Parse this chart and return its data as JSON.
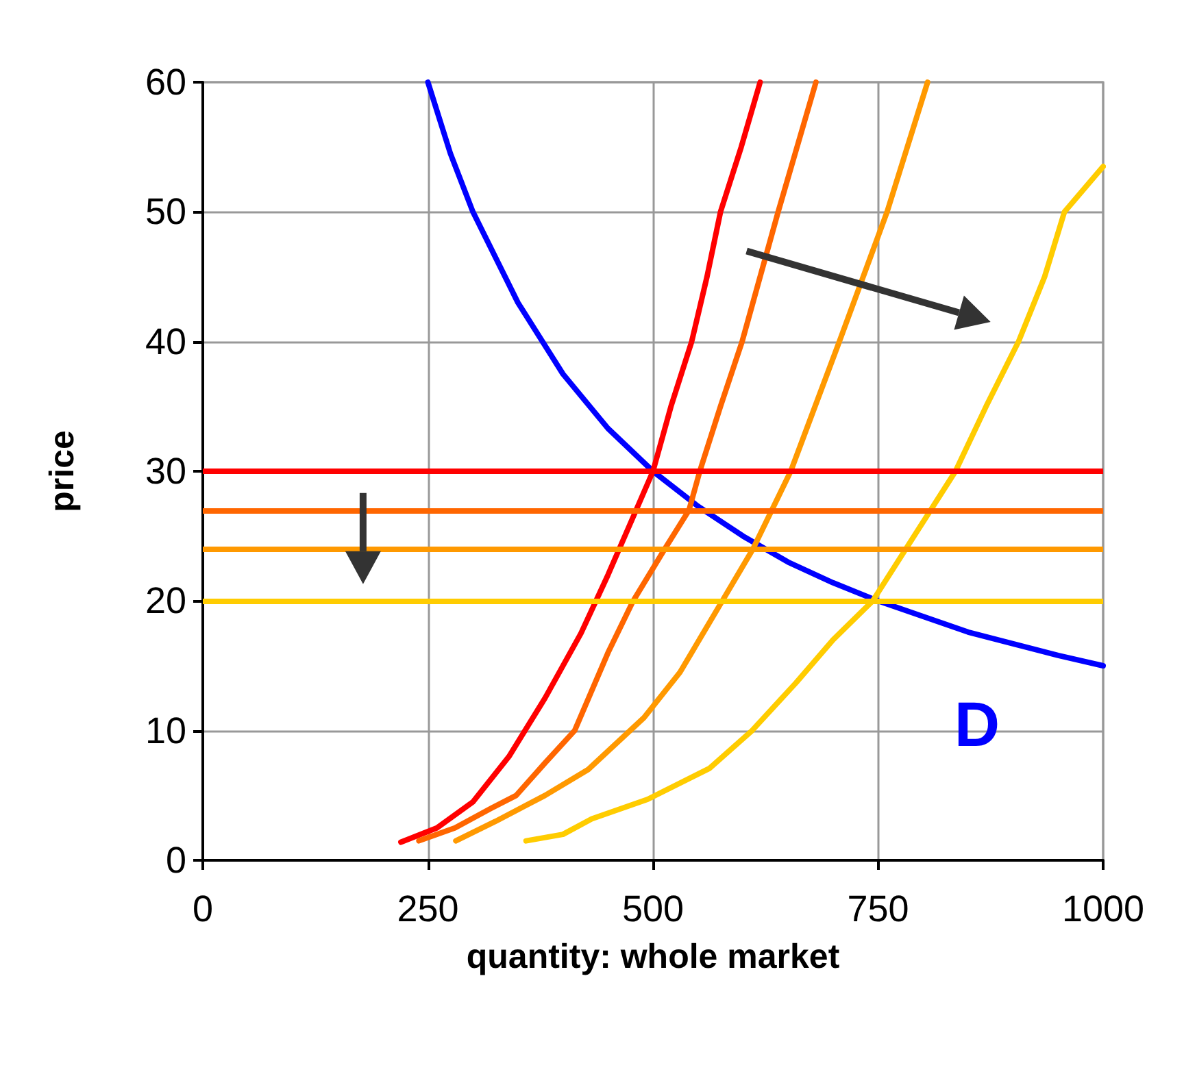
{
  "chart_data": {
    "type": "line",
    "xlabel": "quantity: whole market",
    "ylabel": "price",
    "xlim": [
      0,
      1000
    ],
    "xticks": [
      0,
      250,
      500,
      750,
      1000
    ],
    "ylim": [
      0,
      60
    ],
    "yticks": [
      0,
      10,
      20,
      30,
      40,
      50,
      60
    ],
    "grid": true,
    "line_style": "solid",
    "series": [
      {
        "color": "#0000ff",
        "x": [
          250,
          275,
          300,
          350,
          400,
          450,
          500,
          550,
          600,
          650,
          700,
          750,
          800,
          850,
          900,
          950,
          1000
        ],
        "values": [
          60,
          54.5,
          50,
          43,
          37.5,
          33.3,
          30,
          27.3,
          25,
          23,
          21.4,
          20,
          18.8,
          17.6,
          16.7,
          15.8,
          15
        ]
      },
      {
        "color": "#ff0000",
        "x": [
          220,
          260,
          300,
          340,
          380,
          420,
          450,
          475,
          500,
          520,
          543,
          560,
          575,
          598,
          619
        ],
        "values": [
          1.4,
          2.5,
          4.5,
          8,
          12.5,
          17.5,
          22,
          26,
          30,
          35,
          40,
          45,
          50,
          55,
          60
        ]
      },
      {
        "color": "#ff6600",
        "x": [
          240,
          280,
          320,
          348,
          380,
          413,
          450,
          478,
          513,
          540,
          552,
          575,
          599,
          639,
          681
        ],
        "values": [
          1.5,
          2.5,
          4,
          5,
          7.5,
          10,
          16,
          20,
          24,
          27,
          30,
          35,
          40,
          50,
          60
        ]
      },
      {
        "color": "#ff9900",
        "x": [
          281,
          325,
          380,
          428,
          490,
          530,
          577,
          611,
          653,
          707,
          760,
          805
        ],
        "values": [
          1.5,
          3,
          5,
          7,
          11,
          14.5,
          20,
          24,
          30,
          40,
          50,
          60
        ]
      },
      {
        "color": "#ffcc00",
        "x": [
          359,
          400,
          432,
          494,
          563,
          610,
          659,
          700,
          744,
          790,
          836,
          870,
          906,
          935,
          957,
          1000
        ],
        "values": [
          1.5,
          2,
          3.2,
          4.7,
          7.1,
          10,
          13.7,
          17,
          20,
          25,
          30,
          35,
          40,
          45,
          50,
          53.5
        ]
      }
    ],
    "ref_lines": [
      {
        "axis": "y",
        "value": 30,
        "color": "#ff0000"
      },
      {
        "axis": "y",
        "value": 27,
        "color": "#ff6600"
      },
      {
        "axis": "y",
        "value": 24,
        "color": "#ff9900"
      },
      {
        "axis": "y",
        "value": 20,
        "color": "#ffcc00"
      }
    ],
    "annotations": [
      "D"
    ]
  }
}
